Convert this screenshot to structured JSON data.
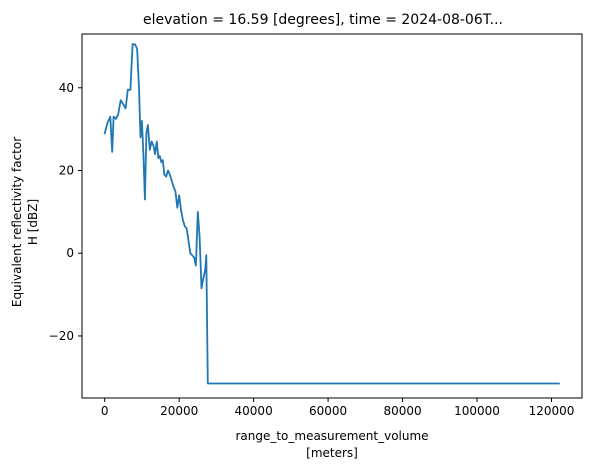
{
  "chart_data": {
    "type": "line",
    "title": "elevation = 16.59 [degrees], time = 2024-08-06T...",
    "xlabel_line1": "range_to_measurement_volume",
    "xlabel_line2": "[meters]",
    "ylabel_line1": "Equivalent reflectivity factor",
    "ylabel_line2": "H [dBZ]",
    "xlim": [
      -6100,
      128200
    ],
    "ylim": [
      -35,
      53
    ],
    "x_ticks": [
      0,
      20000,
      40000,
      60000,
      80000,
      100000,
      120000
    ],
    "x_tick_labels": [
      "0",
      "20000",
      "40000",
      "60000",
      "80000",
      "100000",
      "120000"
    ],
    "y_ticks": [
      -20,
      0,
      20,
      40
    ],
    "y_tick_labels": [
      "−20",
      "0",
      "20",
      "40"
    ],
    "grid": false,
    "line_color": "#1f77b4",
    "series": [
      {
        "x": [
          0,
          750,
          1500,
          2000,
          2400,
          3000,
          3600,
          4300,
          5000,
          5600,
          6200,
          6900,
          7500,
          8100,
          8700,
          9200,
          9600,
          10000,
          10400,
          10800,
          11200,
          11600,
          12100,
          12600,
          13100,
          13500,
          14000,
          14400,
          14800,
          15200,
          15600,
          16000,
          16500,
          17000,
          17500,
          18000,
          18500,
          19000,
          19500,
          20000,
          20500,
          21000,
          21500,
          22000,
          22500,
          23000,
          23500,
          24000,
          24500,
          25000,
          25500,
          26000,
          26500,
          27000,
          27300,
          27700,
          28000,
          28400,
          28800,
          29200,
          29600,
          30000,
          30300,
          30500,
          30900,
          32000,
          40000,
          60000,
          80000,
          100000,
          122000
        ],
        "y": [
          29,
          31.5,
          33,
          24.5,
          33,
          32.5,
          33.5,
          37,
          36,
          35,
          39.5,
          39.5,
          50.5,
          50.5,
          49.5,
          40,
          28,
          32,
          24,
          13,
          29,
          31,
          25,
          27,
          26,
          24,
          27,
          23,
          23.5,
          22,
          22.5,
          19,
          18.5,
          20,
          19,
          17.5,
          16,
          15,
          11,
          14,
          10.5,
          8,
          6.5,
          6,
          3,
          0,
          -0.5,
          -1,
          -3,
          10,
          4,
          -8.5,
          -6,
          -4,
          -0.5,
          -31.5,
          -31.5,
          -31.5,
          -31.5,
          -31.5,
          -31.5,
          -31.5,
          -31.5,
          -31.5,
          -31.5,
          -31.5,
          -31.5,
          -31.5,
          -31.5,
          -31.5,
          -31.5
        ]
      }
    ]
  }
}
